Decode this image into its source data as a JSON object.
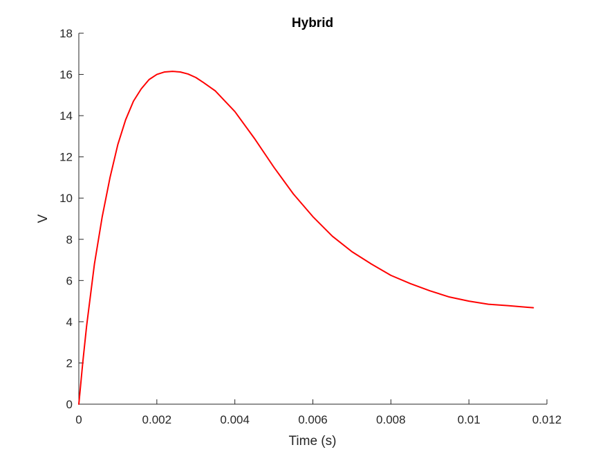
{
  "chart_data": {
    "type": "line",
    "title": "Hybrid",
    "xlabel": "Time (s)",
    "ylabel": "V",
    "xlim": [
      0,
      0.012
    ],
    "ylim": [
      0,
      18
    ],
    "xticks": [
      0,
      0.002,
      0.004,
      0.006,
      0.008,
      0.01,
      0.012
    ],
    "xtick_labels": [
      "0",
      "0.002",
      "0.004",
      "0.006",
      "0.008",
      "0.01",
      "0.012"
    ],
    "yticks": [
      0,
      2,
      4,
      6,
      8,
      10,
      12,
      14,
      16,
      18
    ],
    "ytick_labels": [
      "0",
      "2",
      "4",
      "6",
      "8",
      "10",
      "12",
      "14",
      "16",
      "18"
    ],
    "grid": false,
    "series": [
      {
        "color": "#ff0000",
        "x": [
          0,
          0.0001,
          0.0002,
          0.0004,
          0.0006,
          0.0008,
          0.001,
          0.0012,
          0.0014,
          0.0016,
          0.0018,
          0.002,
          0.0022,
          0.0024,
          0.0026,
          0.0028,
          0.003,
          0.0032,
          0.0035,
          0.004,
          0.0045,
          0.005,
          0.0055,
          0.006,
          0.0065,
          0.007,
          0.0075,
          0.008,
          0.0085,
          0.009,
          0.0095,
          0.01,
          0.0105,
          0.011,
          0.0115,
          0.01165
        ],
        "y": [
          0,
          2.0,
          3.8,
          6.8,
          9.1,
          11.0,
          12.6,
          13.8,
          14.7,
          15.3,
          15.75,
          16.0,
          16.12,
          16.15,
          16.12,
          16.02,
          15.85,
          15.6,
          15.2,
          14.2,
          12.9,
          11.5,
          10.2,
          9.1,
          8.15,
          7.4,
          6.8,
          6.25,
          5.85,
          5.5,
          5.2,
          5.0,
          4.85,
          4.78,
          4.7,
          4.68
        ]
      }
    ]
  }
}
